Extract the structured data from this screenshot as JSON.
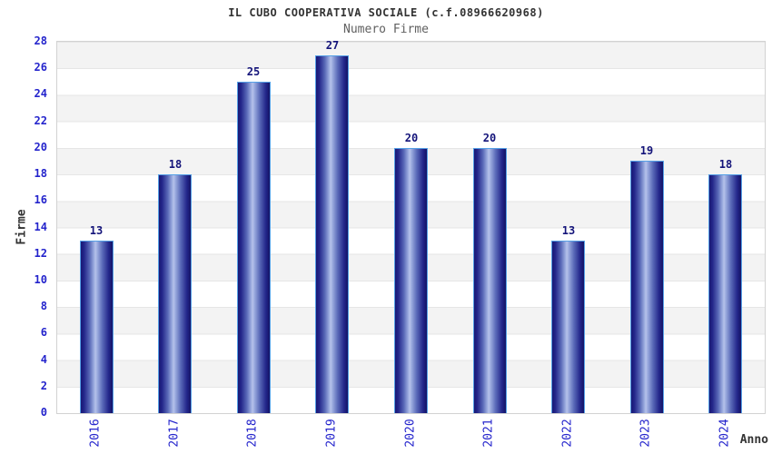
{
  "header": {
    "title": "IL CUBO COOPERATIVA SOCIALE (c.f.08966620968)",
    "subtitle": "Numero Firme"
  },
  "chart_data": {
    "type": "bar",
    "title": "IL CUBO COOPERATIVA SOCIALE (c.f.08966620968)",
    "subtitle": "Numero Firme",
    "categories": [
      "2016",
      "2017",
      "2018",
      "2019",
      "2020",
      "2021",
      "2022",
      "2023",
      "2024"
    ],
    "values": [
      13,
      18,
      25,
      27,
      20,
      20,
      13,
      19,
      18
    ],
    "xlabel": "Anno",
    "ylabel": "Firme",
    "ylim": [
      0,
      28
    ],
    "ytick_step": 2,
    "yticks": [
      0,
      2,
      4,
      6,
      8,
      10,
      12,
      14,
      16,
      18,
      20,
      22,
      24,
      26,
      28
    ],
    "grid": "horizontal-bands-alternating",
    "legend": "none",
    "colors": {
      "bar_edge": "#181874",
      "bar_highlight": "#b6c2ea",
      "bar_border": "#55a0e6",
      "tick_label": "#2424cc",
      "value_label": "#14147a",
      "axis_label": "#333333",
      "title": "#333333",
      "subtitle": "#606060",
      "band_gray": "#f3f3f3",
      "band_white": "#ffffff",
      "plot_border": "#d2d2d2"
    }
  }
}
